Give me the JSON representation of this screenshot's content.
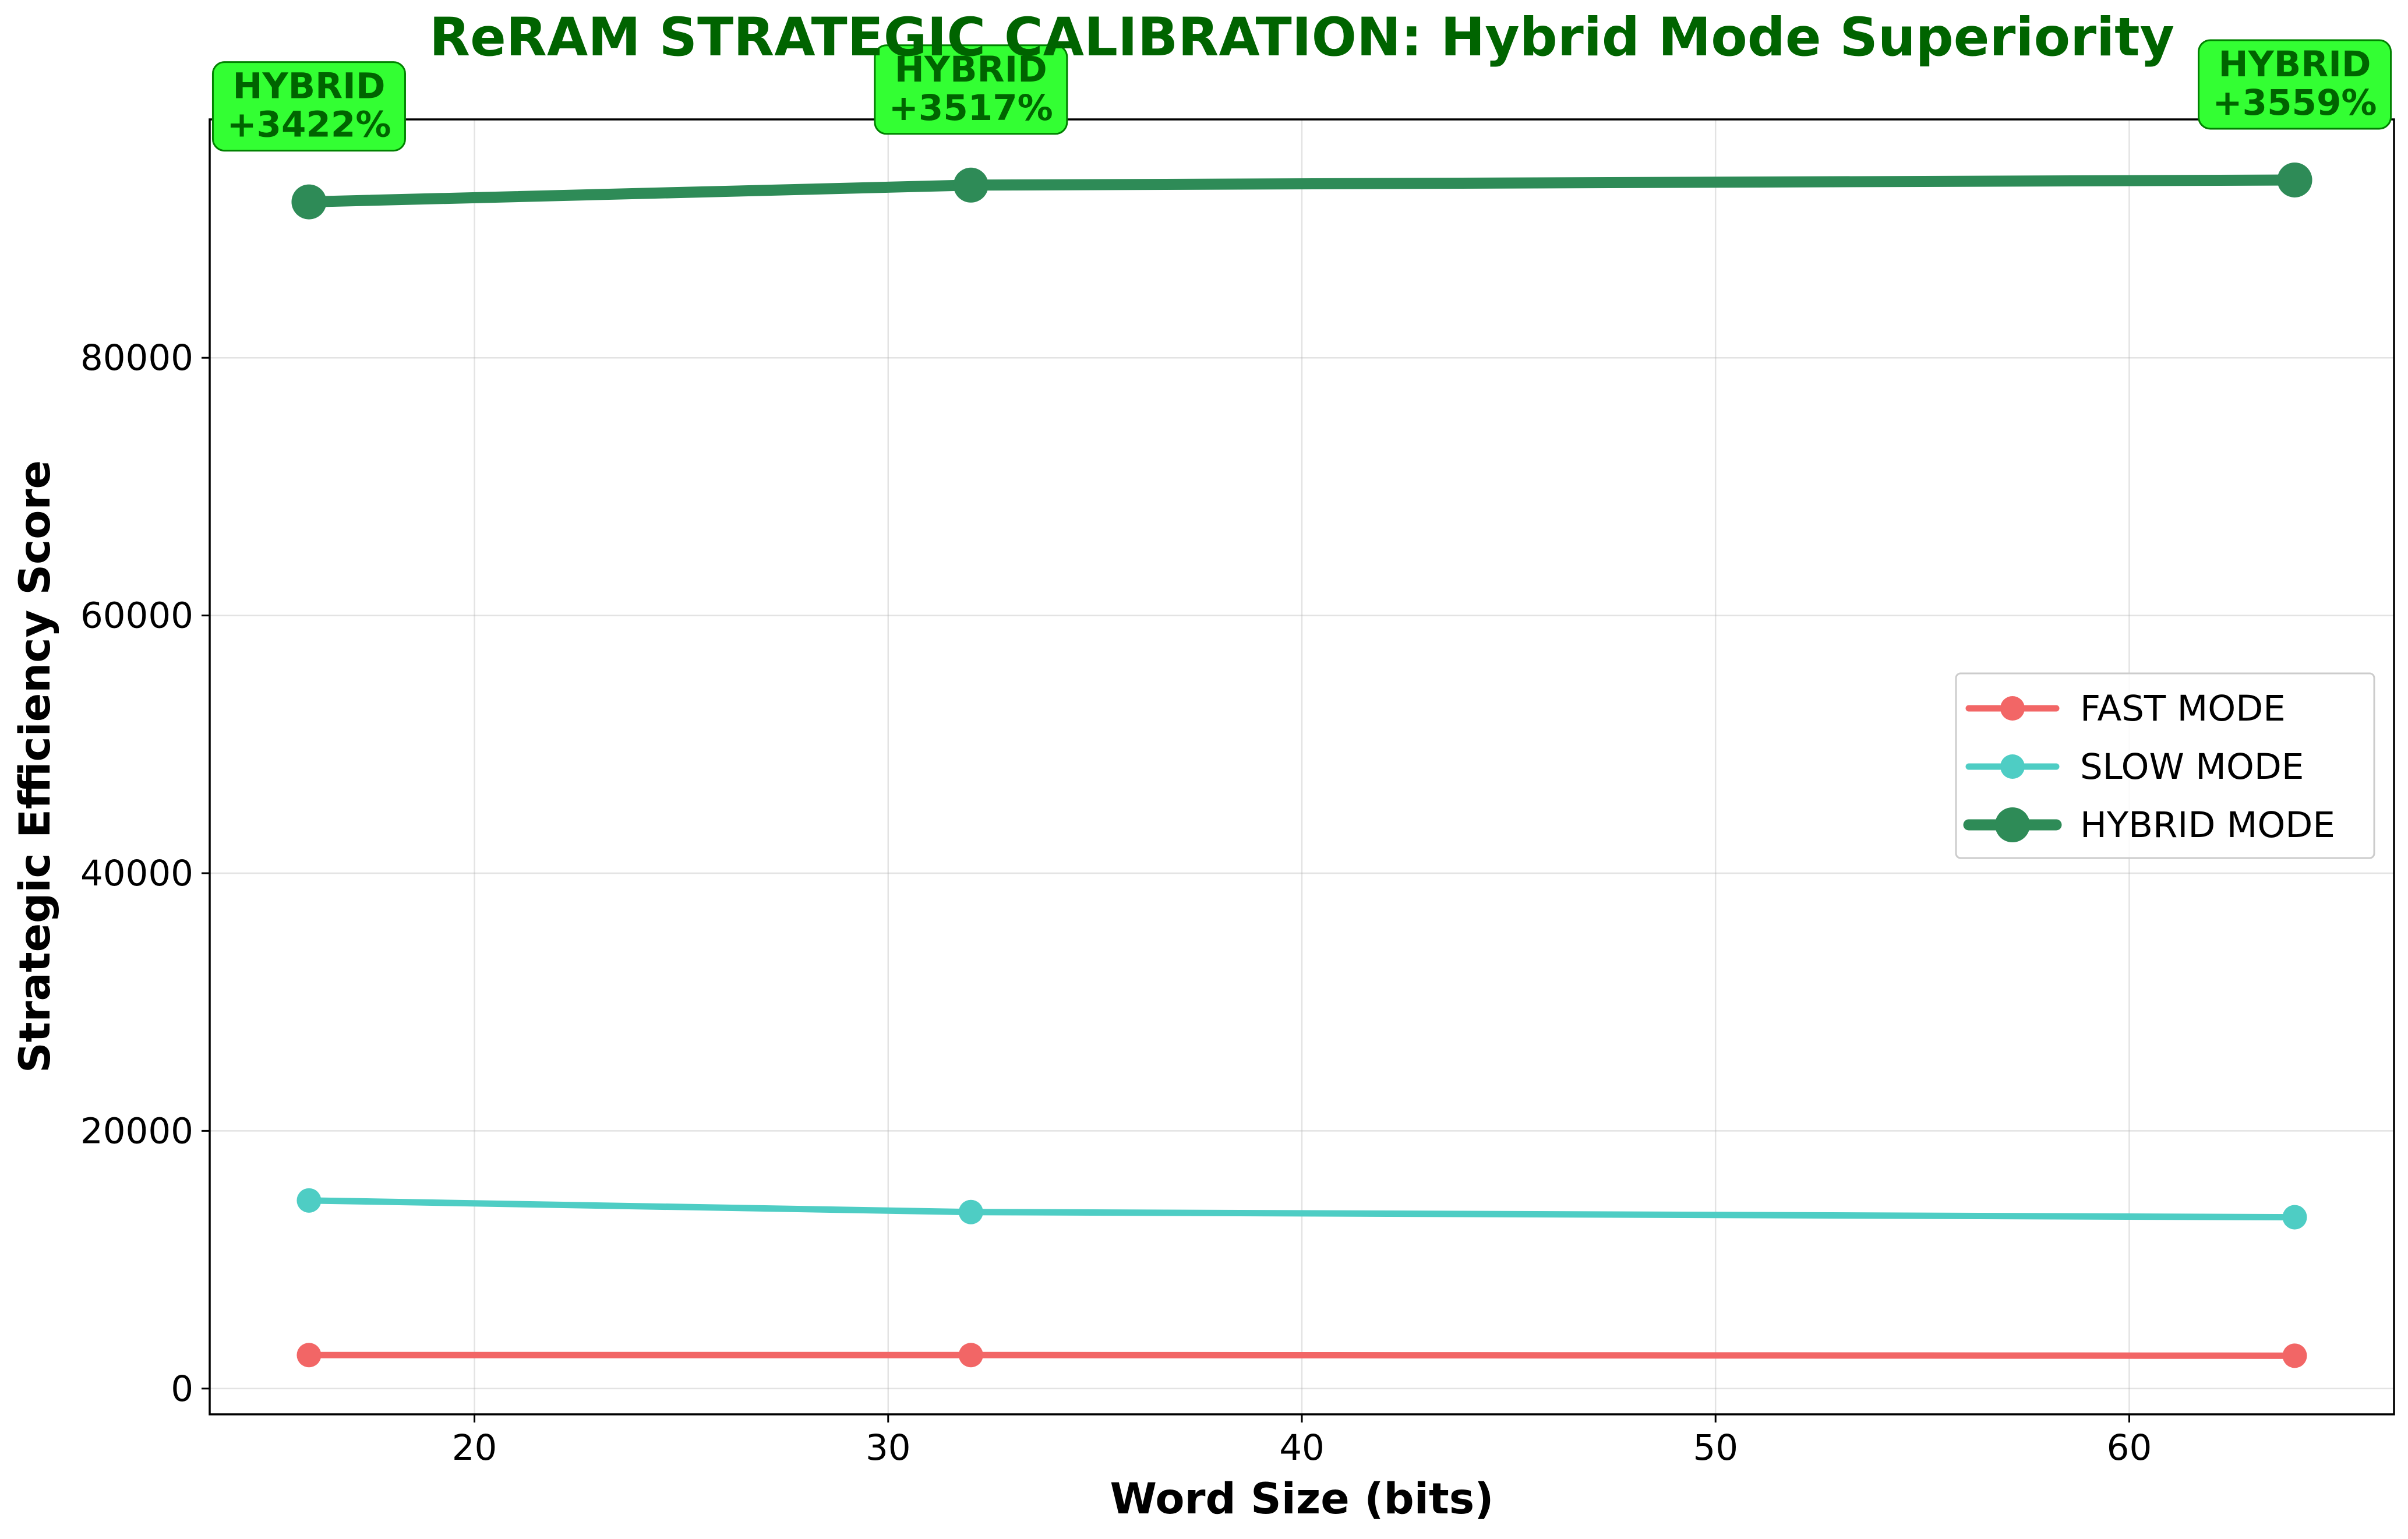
{
  "chart_data": {
    "type": "line",
    "title": "ReRAM STRATEGIC CALIBRATION: Hybrid Mode Superiority",
    "xlabel": "Word Size (bits)",
    "ylabel": "Strategic Efficiency Score",
    "x": [
      16,
      32,
      64
    ],
    "xlim": [
      13.6,
      66.4
    ],
    "ylim": [
      -2000,
      98500
    ],
    "xticks": [
      20,
      30,
      40,
      50,
      60
    ],
    "yticks": [
      0,
      20000,
      40000,
      60000,
      80000
    ],
    "grid": true,
    "legend_position": "center-right",
    "series": [
      {
        "name": "FAST MODE",
        "values": [
          2600,
          2600,
          2550
        ],
        "color": "#f26666"
      },
      {
        "name": "SLOW MODE",
        "values": [
          14600,
          13700,
          13300
        ],
        "color": "#4ecdc4"
      },
      {
        "name": "HYBRID MODE",
        "values": [
          92100,
          93400,
          93800
        ],
        "color": "#2e8b57"
      }
    ],
    "annotations": [
      {
        "line1": "HYBRID",
        "line2": "+3422%",
        "x": 16
      },
      {
        "line1": "HYBRID",
        "line2": "+3517%",
        "x": 32
      },
      {
        "line1": "HYBRID",
        "line2": "+3559%",
        "x": 64
      }
    ],
    "annotation_colors": {
      "fill": "#33ff33",
      "edge": "#008000",
      "text": "#006400"
    }
  }
}
